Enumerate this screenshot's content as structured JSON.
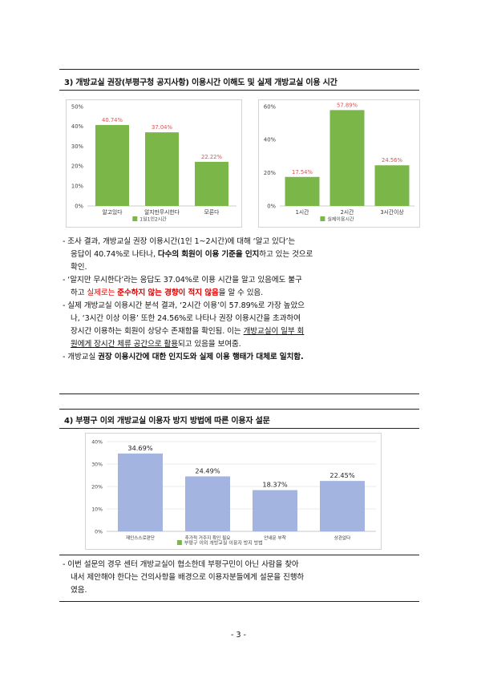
{
  "section3": {
    "heading": "3) 개방교실 권장(부평구청 공지사항) 이용시간 이해도 및 실제 개방교실 이용 시간"
  },
  "section4": {
    "heading": "4) 부평구 이외 개방교실 이용자 방지 방법에 따른 이용자 설문"
  },
  "paragraphs": {
    "p1": {
      "l1": "- 조사 결과, 개방교실 권장 이용시간(1인 1~2시간)에 대해 ‘알고 있다’는",
      "l2a": "응답이 40.74%로 나타나, ",
      "l2b": "다수의 회원이 이용 기준을 인지",
      "l2c": "하고 있는 것으로",
      "l3": "확인."
    },
    "p2": {
      "l1": "- ‘알지만 무시한다’라는 응답도 37.04%로 이용 시간을 알고 있음에도 불구",
      "l2a": "하고 ",
      "l2b": "실제로는 ",
      "l2c": "준수하지 않는 경향이 적지 않음",
      "l2d": "을 알 수 있음."
    },
    "p3": {
      "l1": "- 실제 개방교실 이용시간 분석 결과, ‘2시간 이용’이 57.89%로 가장 높았으",
      "l2": "나, ‘3시간 이상 이용’ 또한 24.56%로 나타나 권장 이용시간을 초과하여",
      "l3a": "장시간 이용하는 회원이 상당수 존재함을 확인됨. 이는 ",
      "l3b": "개방교실이 일부 회",
      "l4a": "원에게 장시간 체류 공간으로 활용",
      "l4b": "되고 있음을 보여줌."
    },
    "p4": {
      "l1a": "- 개방교실 ",
      "l1b": "권장 이용시간에 대한 인지도와 실제 이용 행태가 대체로 일치함."
    },
    "p5": {
      "l1": "- 이번 설문의 경우 센터 개방교실이 협소한데 부평구민이 아닌 사람을 찾아",
      "l2": "내서 제안해야 한다는 건의사항을 배경으로 이용자분들에게 설문을 진행하",
      "l3": "였음."
    }
  },
  "footer": {
    "page_number": "- 3 -"
  },
  "chart_data": [
    {
      "type": "bar",
      "categories": [
        "알고있다",
        "알지만무시한다",
        "모른다"
      ],
      "values": [
        40.74,
        37.04,
        22.22
      ],
      "data_labels": [
        "40.74%",
        "37.04%",
        "22.22%"
      ],
      "yticks": [
        "0%",
        "10%",
        "20%",
        "30%",
        "40%",
        "50%"
      ],
      "ylim": [
        0,
        50
      ],
      "series_name": "1일1인2시간",
      "bar_color": "#7ab648",
      "label_color": "#e05050",
      "legend_position": "bottom",
      "grid": false
    },
    {
      "type": "bar",
      "categories": [
        "1시간",
        "2시간",
        "3시간이상"
      ],
      "values": [
        17.54,
        57.89,
        24.56
      ],
      "data_labels": [
        "17.54%",
        "57.89%",
        "24.56%"
      ],
      "yticks": [
        "0%",
        "20%",
        "40%",
        "60%"
      ],
      "ylim": [
        0,
        60
      ],
      "series_name": "실제이용시간",
      "bar_color": "#7ab648",
      "label_color": "#e05050",
      "legend_position": "bottom",
      "grid": false
    },
    {
      "type": "bar",
      "categories": [
        "재인스스로판단",
        "추가적 거주지 확인 필요",
        "안내문 부착",
        "상관없다"
      ],
      "values": [
        34.69,
        24.49,
        18.37,
        22.45
      ],
      "data_labels": [
        "34.69%",
        "24.49%",
        "18.37%",
        "22.45%"
      ],
      "yticks": [
        "0%",
        "10%",
        "20%",
        "30%",
        "40%"
      ],
      "ylim": [
        0,
        40
      ],
      "series_name": "부평구 이외 개방교실 이용자 방지 방법",
      "bar_color": "#a4b4e0",
      "label_color": "#222222",
      "legend_color": "#7ab648",
      "legend_position": "bottom",
      "grid": true
    }
  ]
}
